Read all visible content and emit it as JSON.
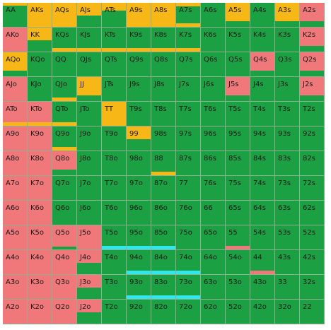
{
  "colors": {
    "green": "#1ba144",
    "orange": "#f7b716",
    "red": "#f1787a",
    "cyan": "#2ee8ee"
  },
  "cells": [
    {
      "label": "AA",
      "fill": "orange",
      "frac": 0.1
    },
    {
      "label": "AKs",
      "fill": "orange",
      "frac": 1
    },
    {
      "label": "AQs",
      "fill": "orange",
      "frac": 1
    },
    {
      "label": "AJs",
      "fill": "orange",
      "frac": 0.5
    },
    {
      "label": "ATs",
      "fill": "orange",
      "frac": 0.3
    },
    {
      "label": "A9s",
      "fill": "orange",
      "frac": 1
    },
    {
      "label": "A8s",
      "fill": "orange",
      "frac": 1
    },
    {
      "label": "A7s",
      "fill": "orange",
      "frac": 0.15
    },
    {
      "label": "A6s",
      "fill": "green",
      "frac": 0
    },
    {
      "label": "A5s",
      "fill": "orange",
      "frac": 0.75
    },
    {
      "label": "A4s",
      "fill": "green",
      "frac": 0
    },
    {
      "label": "A3s",
      "fill": "orange",
      "frac": 0.75
    },
    {
      "label": "A2s",
      "fill": "red",
      "frac": 0.75
    },
    {
      "label": "AKo",
      "fill": "red",
      "frac": 1
    },
    {
      "label": "KK",
      "fill": "orange",
      "frac": 0.5
    },
    {
      "label": "KQs",
      "fill": "green",
      "frac": 0
    },
    {
      "label": "KJs",
      "fill": "green",
      "frac": 0
    },
    {
      "label": "KTs",
      "fill": "green",
      "frac": 0
    },
    {
      "label": "K9s",
      "fill": "green",
      "frac": 0
    },
    {
      "label": "K8s",
      "fill": "green",
      "frac": 0
    },
    {
      "label": "K7s",
      "fill": "green",
      "frac": 0
    },
    {
      "label": "K6s",
      "fill": "green",
      "frac": 0
    },
    {
      "label": "K5s",
      "fill": "green",
      "frac": 0
    },
    {
      "label": "K4s",
      "fill": "green",
      "frac": 0
    },
    {
      "label": "K3s",
      "fill": "green",
      "frac": 0
    },
    {
      "label": "K2s",
      "fill": "red",
      "frac": 0.75
    },
    {
      "label": "AQo",
      "fill": "orange",
      "frac": 0.75
    },
    {
      "label": "KQo",
      "fill": "green",
      "frac": 0
    },
    {
      "label": "QQ",
      "fill": "green",
      "frac": 0
    },
    {
      "label": "QJs",
      "fill": "green",
      "frac": 0
    },
    {
      "label": "QTs",
      "fill": "green",
      "frac": 0
    },
    {
      "label": "Q9s",
      "fill": "green",
      "frac": 0
    },
    {
      "label": "Q8s",
      "fill": "green",
      "frac": 0
    },
    {
      "label": "Q7s",
      "fill": "green",
      "frac": 0
    },
    {
      "label": "Q6s",
      "fill": "green",
      "frac": 0
    },
    {
      "label": "Q5s",
      "fill": "green",
      "frac": 0
    },
    {
      "label": "Q4s",
      "fill": "red",
      "frac": 0.75
    },
    {
      "label": "Q3s",
      "fill": "green",
      "frac": 0
    },
    {
      "label": "Q2s",
      "fill": "red",
      "frac": 0.75
    },
    {
      "label": "AJo",
      "fill": "red",
      "frac": 1
    },
    {
      "label": "KJo",
      "fill": "green",
      "frac": 0
    },
    {
      "label": "QJo",
      "fill": "green",
      "frac": 0
    },
    {
      "label": "JJ",
      "fill": "orange",
      "frac": 0.75
    },
    {
      "label": "JTs",
      "fill": "green",
      "frac": 0
    },
    {
      "label": "J9s",
      "fill": "green",
      "frac": 0
    },
    {
      "label": "J8s",
      "fill": "green",
      "frac": 0
    },
    {
      "label": "J7s",
      "fill": "green",
      "frac": 0
    },
    {
      "label": "J6s",
      "fill": "green",
      "frac": 0
    },
    {
      "label": "J5s",
      "fill": "red",
      "frac": 0.75
    },
    {
      "label": "J4s",
      "fill": "green",
      "frac": 0
    },
    {
      "label": "J3s",
      "fill": "green",
      "frac": 0
    },
    {
      "label": "J2s",
      "fill": "red",
      "frac": 0.75
    },
    {
      "label": "ATo",
      "fill": "red",
      "frac": 1
    },
    {
      "label": "KTo",
      "fill": "red",
      "frac": 1
    },
    {
      "label": "QTo",
      "fill": "green",
      "frac": 0
    },
    {
      "label": "JTo",
      "fill": "green",
      "frac": 0
    },
    {
      "label": "TT",
      "fill": "orange",
      "frac": 1
    },
    {
      "label": "T9s",
      "fill": "green",
      "frac": 0
    },
    {
      "label": "T8s",
      "fill": "green",
      "frac": 0
    },
    {
      "label": "T7s",
      "fill": "green",
      "frac": 0
    },
    {
      "label": "T6s",
      "fill": "green",
      "frac": 0
    },
    {
      "label": "T5s",
      "fill": "green",
      "frac": 0
    },
    {
      "label": "T4s",
      "fill": "green",
      "frac": 0
    },
    {
      "label": "T3s",
      "fill": "green",
      "frac": 0
    },
    {
      "label": "T2s",
      "fill": "green",
      "frac": 0
    },
    {
      "label": "A9o",
      "fill": "red",
      "frac": 1
    },
    {
      "label": "K9o",
      "fill": "red",
      "frac": 1
    },
    {
      "label": "Q9o",
      "fill": "green",
      "frac": 0
    },
    {
      "label": "J9o",
      "fill": "green",
      "frac": 0
    },
    {
      "label": "T9o",
      "fill": "green",
      "frac": 0
    },
    {
      "label": "99",
      "fill": "orange",
      "frac": 0.5
    },
    {
      "label": "98s",
      "fill": "green",
      "frac": 0
    },
    {
      "label": "97s",
      "fill": "green",
      "frac": 0
    },
    {
      "label": "96s",
      "fill": "green",
      "frac": 0
    },
    {
      "label": "95s",
      "fill": "green",
      "frac": 0
    },
    {
      "label": "94s",
      "fill": "green",
      "frac": 0
    },
    {
      "label": "93s",
      "fill": "green",
      "frac": 0
    },
    {
      "label": "92s",
      "fill": "green",
      "frac": 0
    },
    {
      "label": "A8o",
      "fill": "red",
      "frac": 1
    },
    {
      "label": "K8o",
      "fill": "red",
      "frac": 1
    },
    {
      "label": "Q8o",
      "fill": "red",
      "frac": 0.75
    },
    {
      "label": "J8o",
      "fill": "green",
      "frac": 0
    },
    {
      "label": "T8o",
      "fill": "green",
      "frac": 0
    },
    {
      "label": "98o",
      "fill": "green",
      "frac": 0
    },
    {
      "label": "88",
      "fill": "green",
      "frac": 0
    },
    {
      "label": "87s",
      "fill": "green",
      "frac": 0
    },
    {
      "label": "86s",
      "fill": "green",
      "frac": 0
    },
    {
      "label": "85s",
      "fill": "green",
      "frac": 0
    },
    {
      "label": "84s",
      "fill": "green",
      "frac": 0
    },
    {
      "label": "83s",
      "fill": "green",
      "frac": 0
    },
    {
      "label": "82s",
      "fill": "green",
      "frac": 0
    },
    {
      "label": "A7o",
      "fill": "red",
      "frac": 1
    },
    {
      "label": "K7o",
      "fill": "red",
      "frac": 1
    },
    {
      "label": "Q7o",
      "fill": "green",
      "frac": 0
    },
    {
      "label": "J7o",
      "fill": "green",
      "frac": 0
    },
    {
      "label": "T7o",
      "fill": "green",
      "frac": 0
    },
    {
      "label": "97o",
      "fill": "green",
      "frac": 0
    },
    {
      "label": "87o",
      "fill": "green",
      "frac": 0
    },
    {
      "label": "77",
      "fill": "green",
      "frac": 0
    },
    {
      "label": "76s",
      "fill": "green",
      "frac": 0
    },
    {
      "label": "75s",
      "fill": "green",
      "frac": 0
    },
    {
      "label": "74s",
      "fill": "green",
      "frac": 0
    },
    {
      "label": "73s",
      "fill": "green",
      "frac": 0
    },
    {
      "label": "72s",
      "fill": "green",
      "frac": 0
    },
    {
      "label": "A6o",
      "fill": "red",
      "frac": 1
    },
    {
      "label": "K6o",
      "fill": "red",
      "frac": 1
    },
    {
      "label": "Q6o",
      "fill": "green",
      "frac": 0
    },
    {
      "label": "J6o",
      "fill": "green",
      "frac": 0
    },
    {
      "label": "T6o",
      "fill": "green",
      "frac": 0
    },
    {
      "label": "96o",
      "fill": "green",
      "frac": 0
    },
    {
      "label": "86o",
      "fill": "green",
      "frac": 0
    },
    {
      "label": "76o",
      "fill": "green",
      "frac": 0
    },
    {
      "label": "66",
      "fill": "green",
      "frac": 0
    },
    {
      "label": "65s",
      "fill": "green",
      "frac": 0
    },
    {
      "label": "64s",
      "fill": "green",
      "frac": 0
    },
    {
      "label": "63s",
      "fill": "green",
      "frac": 0
    },
    {
      "label": "62s",
      "fill": "green",
      "frac": 0
    },
    {
      "label": "A5o",
      "fill": "red",
      "frac": 1
    },
    {
      "label": "K5o",
      "fill": "red",
      "frac": 1
    },
    {
      "label": "Q5o",
      "fill": "red",
      "frac": 1
    },
    {
      "label": "J5o",
      "fill": "red",
      "frac": 1
    },
    {
      "label": "T5o",
      "fill": "green",
      "frac": 0
    },
    {
      "label": "95o",
      "fill": "green",
      "frac": 0
    },
    {
      "label": "85o",
      "fill": "green",
      "frac": 0
    },
    {
      "label": "75o",
      "fill": "green",
      "frac": 0
    },
    {
      "label": "65o",
      "fill": "green",
      "frac": 0
    },
    {
      "label": "55",
      "fill": "green",
      "frac": 0
    },
    {
      "label": "54s",
      "fill": "green",
      "frac": 0
    },
    {
      "label": "53s",
      "fill": "green",
      "frac": 0
    },
    {
      "label": "52s",
      "fill": "green",
      "frac": 0
    },
    {
      "label": "A4o",
      "fill": "red",
      "frac": 1
    },
    {
      "label": "K4o",
      "fill": "red",
      "frac": 1
    },
    {
      "label": "Q4o",
      "fill": "red",
      "frac": 1
    },
    {
      "label": "J4o",
      "fill": "red",
      "frac": 0.5
    },
    {
      "label": "T4o",
      "fill": "green",
      "frac": 0
    },
    {
      "label": "94o",
      "fill": "green",
      "frac": 0
    },
    {
      "label": "84o",
      "fill": "green",
      "frac": 0
    },
    {
      "label": "74o",
      "fill": "green",
      "frac": 0
    },
    {
      "label": "64o",
      "fill": "green",
      "frac": 0
    },
    {
      "label": "54o",
      "fill": "green",
      "frac": 0
    },
    {
      "label": "44",
      "fill": "green",
      "frac": 0
    },
    {
      "label": "43s",
      "fill": "green",
      "frac": 0
    },
    {
      "label": "42s",
      "fill": "green",
      "frac": 0
    },
    {
      "label": "A3o",
      "fill": "red",
      "frac": 1
    },
    {
      "label": "K3o",
      "fill": "red",
      "frac": 1
    },
    {
      "label": "Q3o",
      "fill": "red",
      "frac": 1
    },
    {
      "label": "J3o",
      "fill": "red",
      "frac": 0.5
    },
    {
      "label": "T3o",
      "fill": "green",
      "frac": 0
    },
    {
      "label": "93o",
      "fill": "green",
      "frac": 0
    },
    {
      "label": "83o",
      "fill": "green",
      "frac": 0
    },
    {
      "label": "73o",
      "fill": "green",
      "frac": 0
    },
    {
      "label": "63o",
      "fill": "green",
      "frac": 0
    },
    {
      "label": "53o",
      "fill": "green",
      "frac": 0
    },
    {
      "label": "43o",
      "fill": "green",
      "frac": 0
    },
    {
      "label": "33",
      "fill": "green",
      "frac": 0
    },
    {
      "label": "32s",
      "fill": "green",
      "frac": 0
    },
    {
      "label": "A2o",
      "fill": "red",
      "frac": 1
    },
    {
      "label": "K2o",
      "fill": "red",
      "frac": 1
    },
    {
      "label": "Q2o",
      "fill": "red",
      "frac": 1
    },
    {
      "label": "J2o",
      "fill": "red",
      "frac": 0.5
    },
    {
      "label": "T2o",
      "fill": "green",
      "frac": 0
    },
    {
      "label": "92o",
      "fill": "green",
      "frac": 0
    },
    {
      "label": "82o",
      "fill": "green",
      "frac": 0
    },
    {
      "label": "72o",
      "fill": "green",
      "frac": 0
    },
    {
      "label": "62o",
      "fill": "green",
      "frac": 0
    },
    {
      "label": "52o",
      "fill": "green",
      "frac": 0
    },
    {
      "label": "42o",
      "fill": "green",
      "frac": 0
    },
    {
      "label": "32o",
      "fill": "green",
      "frac": 0
    },
    {
      "label": "22",
      "fill": "green",
      "frac": 0
    }
  ],
  "bars": [
    {
      "cell": "AA",
      "color": "green",
      "frac": 0.2
    },
    {
      "cell": "A7s",
      "color": "orange",
      "frac": 0.15
    },
    {
      "cell": "KK",
      "color": "green",
      "frac": 0.2
    },
    {
      "cell": "KQs",
      "color": "orange",
      "frac": 0.15
    },
    {
      "cell": "KJs",
      "color": "orange",
      "frac": 0.15
    },
    {
      "cell": "KTs",
      "color": "orange",
      "frac": 0.15
    },
    {
      "cell": "K9s",
      "color": "orange",
      "frac": 0.15
    },
    {
      "cell": "K8s",
      "color": "orange",
      "frac": 0.15
    },
    {
      "cell": "K7s",
      "color": "orange",
      "frac": 0.15
    },
    {
      "cell": "QJo",
      "color": "orange",
      "frac": 0.15
    },
    {
      "cell": "ATo",
      "color": "orange",
      "frac": 0.15
    },
    {
      "cell": "KTo",
      "color": "orange",
      "frac": 0.15
    },
    {
      "cell": "QTo",
      "color": "orange",
      "frac": 0.15
    },
    {
      "cell": "Q9o",
      "color": "orange",
      "frac": 0.15
    },
    {
      "cell": "88",
      "color": "orange",
      "frac": 0.15
    },
    {
      "cell": "Q5o",
      "color": "green",
      "frac": 0.1
    },
    {
      "cell": "T5o",
      "color": "cyan",
      "frac": 0.15
    },
    {
      "cell": "95o",
      "color": "cyan",
      "frac": 0.15
    },
    {
      "cell": "85o",
      "color": "cyan",
      "frac": 0.15
    },
    {
      "cell": "55",
      "color": "red",
      "frac": 0.15
    },
    {
      "cell": "94o",
      "color": "cyan",
      "frac": 0.15
    },
    {
      "cell": "84o",
      "color": "cyan",
      "frac": 0.15
    },
    {
      "cell": "74o",
      "color": "cyan",
      "frac": 0.15
    },
    {
      "cell": "44",
      "color": "red",
      "frac": 0.15
    },
    {
      "cell": "93o",
      "color": "cyan",
      "frac": 0.15
    },
    {
      "cell": "83o",
      "color": "cyan",
      "frac": 0.15
    },
    {
      "cell": "73o",
      "color": "cyan",
      "frac": 0.15
    }
  ]
}
